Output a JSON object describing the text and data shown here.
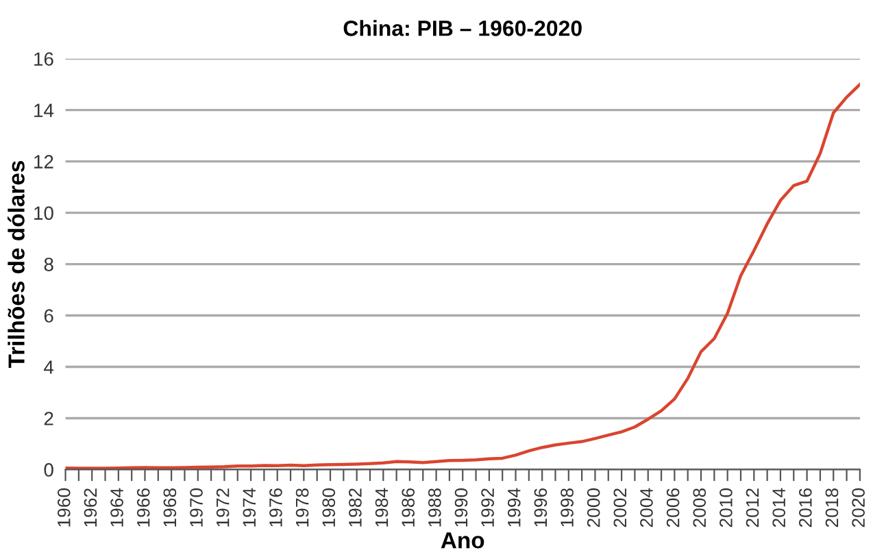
{
  "chart_data": {
    "type": "line",
    "title": "China: PIB – 1960-2020",
    "xlabel": "Ano",
    "ylabel": "Trilhões de dólares",
    "x": [
      1960,
      1961,
      1962,
      1963,
      1964,
      1965,
      1966,
      1967,
      1968,
      1969,
      1970,
      1971,
      1972,
      1973,
      1974,
      1975,
      1976,
      1977,
      1978,
      1979,
      1980,
      1981,
      1982,
      1983,
      1984,
      1985,
      1986,
      1987,
      1988,
      1989,
      1990,
      1991,
      1992,
      1993,
      1994,
      1995,
      1996,
      1997,
      1998,
      1999,
      2000,
      2001,
      2002,
      2003,
      2004,
      2005,
      2006,
      2007,
      2008,
      2009,
      2010,
      2011,
      2012,
      2013,
      2014,
      2015,
      2016,
      2017,
      2018,
      2019,
      2020
    ],
    "series": [
      {
        "color": "#d9452f",
        "values": [
          0.06,
          0.05,
          0.05,
          0.05,
          0.06,
          0.07,
          0.08,
          0.07,
          0.07,
          0.08,
          0.09,
          0.1,
          0.11,
          0.14,
          0.14,
          0.16,
          0.15,
          0.17,
          0.15,
          0.18,
          0.19,
          0.2,
          0.21,
          0.23,
          0.26,
          0.31,
          0.3,
          0.27,
          0.31,
          0.35,
          0.36,
          0.38,
          0.42,
          0.44,
          0.56,
          0.73,
          0.86,
          0.96,
          1.03,
          1.09,
          1.21,
          1.34,
          1.47,
          1.66,
          1.96,
          2.29,
          2.75,
          3.55,
          4.59,
          5.1,
          6.09,
          7.55,
          8.53,
          9.57,
          10.48,
          11.06,
          11.23,
          12.31,
          13.89,
          14.5,
          15.0
        ]
      }
    ],
    "xlim": [
      1960,
      2020
    ],
    "xticks": [
      1960,
      {
        "value": 1961,
        "label": null
      },
      1962,
      {
        "value": 1963,
        "label": null
      },
      1964,
      {
        "value": 1965,
        "label": null
      },
      1966,
      {
        "value": 1967,
        "label": null
      },
      1968,
      {
        "value": 1969,
        "label": null
      },
      1970,
      {
        "value": 1971,
        "label": null
      },
      1972,
      {
        "value": 1973,
        "label": null
      },
      1974,
      {
        "value": 1975,
        "label": null
      },
      1976,
      {
        "value": 1977,
        "label": null
      },
      1978,
      {
        "value": 1979,
        "label": null
      },
      1980,
      {
        "value": 1981,
        "label": null
      },
      1982,
      {
        "value": 1983,
        "label": null
      },
      1984,
      {
        "value": 1985,
        "label": null
      },
      1986,
      {
        "value": 1987,
        "label": null
      },
      1988,
      {
        "value": 1989,
        "label": null
      },
      1990,
      {
        "value": 1991,
        "label": null
      },
      1992,
      {
        "value": 1993,
        "label": null
      },
      1994,
      {
        "value": 1995,
        "label": null
      },
      1996,
      {
        "value": 1997,
        "label": null
      },
      1998,
      {
        "value": 1999,
        "label": null
      },
      2000,
      {
        "value": 2001,
        "label": null
      },
      2002,
      {
        "value": 2003,
        "label": null
      },
      2004,
      {
        "value": 2005,
        "label": null
      },
      2006,
      {
        "value": 2007,
        "label": null
      },
      2008,
      {
        "value": 2009,
        "label": null
      },
      2010,
      {
        "value": 2011,
        "label": null
      },
      2012,
      {
        "value": 2013,
        "label": null
      },
      2014,
      {
        "value": 2015,
        "label": null
      },
      2016,
      {
        "value": 2017,
        "label": null
      },
      2018,
      {
        "value": 2019,
        "label": null
      },
      2020
    ],
    "ylim": [
      0,
      16
    ],
    "yticks": [
      0,
      2,
      4,
      6,
      8,
      10,
      12,
      14,
      16
    ],
    "grid": "y",
    "legend": false,
    "marker": "none",
    "line_style": "solid"
  }
}
